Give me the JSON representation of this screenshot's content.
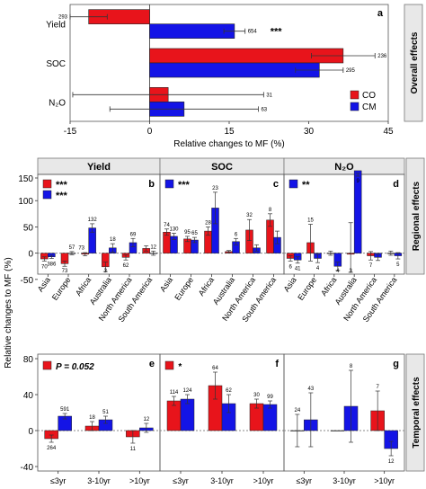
{
  "colors": {
    "co": "#e8141b",
    "cm": "#1414e6",
    "strip": "#e8e8e8",
    "err": "#333333"
  },
  "ylabel_shared": "Relative changes to MF (%)",
  "chart_data": [
    {
      "id": "a",
      "type": "bar",
      "orientation": "horizontal",
      "panel_letter": "a",
      "side_label": "Overall effects",
      "xlabel": "Relative changes to MF (%)",
      "xlim": [
        -15,
        45
      ],
      "xticks": [
        "-15",
        "0",
        "15",
        "30",
        "45"
      ],
      "legend": [
        {
          "name": "CO",
          "color": "#e8141b"
        },
        {
          "name": "CM",
          "color": "#1414e6"
        }
      ],
      "legend_position": "bottom-right",
      "categories": [
        "Yield",
        "SOC",
        "N₂O"
      ],
      "series": [
        {
          "name": "CO",
          "values": [
            -11.5,
            36.5,
            3.5
          ],
          "err": [
            3.5,
            6,
            18
          ],
          "n": [
            "293",
            "236",
            "31"
          ]
        },
        {
          "name": "CM",
          "values": [
            16,
            32,
            6.5
          ],
          "err": [
            2,
            4.5,
            14
          ],
          "n": [
            "654",
            "295",
            "63"
          ]
        }
      ],
      "significance": [
        {
          "category": 0,
          "text": "***"
        }
      ]
    },
    {
      "id": "b",
      "type": "bar",
      "panel_letter": "b",
      "strip_title": "Yield",
      "ylim": [
        -40,
        150
      ],
      "yticks": [
        "-50",
        "0",
        "50",
        "100",
        "150"
      ],
      "categories": [
        "Asia",
        "Europe",
        "Africa",
        "Australia",
        "North America",
        "South America"
      ],
      "series": [
        {
          "name": "CO",
          "values": [
            -11,
            -20,
            -2,
            -26,
            -8,
            9
          ],
          "err": [
            4,
            5,
            3,
            9,
            5,
            5
          ],
          "n": [
            "70",
            "73",
            "",
            "3",
            "62",
            ""
          ]
        },
        {
          "name": "CM",
          "values": [
            -7,
            0,
            48,
            10,
            20,
            0
          ],
          "err": [
            3,
            3,
            8,
            8,
            8,
            4
          ],
          "n": [
            "386",
            "57",
            "132",
            "18",
            "69",
            "12"
          ]
        }
      ],
      "n_extra": [
        {
          "category": 2,
          "text": "73"
        }
      ],
      "legend_sig": [
        {
          "series": 0,
          "text": "***"
        },
        {
          "series": 1,
          "text": "***"
        }
      ],
      "side_label": "Regional effects"
    },
    {
      "id": "c",
      "type": "bar",
      "panel_letter": "c",
      "strip_title": "SOC",
      "ylim": [
        -40,
        150
      ],
      "categories": [
        "Asia",
        "Europe",
        "Africa",
        "Australia",
        "North America",
        "South America"
      ],
      "series": [
        {
          "name": "CO",
          "values": [
            40,
            27,
            42,
            3,
            44,
            63
          ],
          "err": [
            6,
            5,
            8,
            2,
            20,
            12
          ],
          "n": [
            "74",
            "95",
            "28",
            "",
            "32",
            "8"
          ]
        },
        {
          "name": "CM",
          "values": [
            32,
            25,
            86,
            22,
            10,
            30
          ],
          "err": [
            6,
            5,
            30,
            6,
            6,
            12
          ],
          "n": [
            "130",
            "65",
            "23",
            "6",
            "",
            ""
          ]
        }
      ],
      "legend_sig": [
        {
          "series": 1,
          "text": "***"
        }
      ]
    },
    {
      "id": "d",
      "type": "bar",
      "panel_letter": "d",
      "strip_title": "N₂O",
      "ylim": [
        -40,
        150
      ],
      "categories": [
        "Asia",
        "Europe",
        "Africa",
        "Australia",
        "North America",
        "South America"
      ],
      "series": [
        {
          "name": "CO",
          "values": [
            -10,
            20,
            0,
            -2,
            -5,
            0
          ],
          "err": [
            5,
            35,
            4,
            60,
            8,
            4
          ],
          "n": [
            "6",
            "15",
            "",
            "3",
            "7",
            ""
          ]
        },
        {
          "name": "CM",
          "values": [
            -13,
            -10,
            -25,
            157,
            -8,
            -5
          ],
          "err": [
            6,
            8,
            8,
            5,
            6,
            6
          ],
          "n": [
            "41",
            "4",
            "4",
            "9",
            "",
            "5"
          ]
        }
      ],
      "legend_sig": [
        {
          "series": 1,
          "text": "**"
        }
      ]
    },
    {
      "id": "e",
      "type": "bar",
      "panel_letter": "e",
      "ylim": [
        -45,
        85
      ],
      "yticks": [
        "-40",
        "0",
        "40",
        "80"
      ],
      "categories": [
        "≤3yr",
        "3-10yr",
        ">10yr"
      ],
      "series": [
        {
          "name": "CO",
          "values": [
            -9,
            5,
            -7
          ],
          "err": [
            4,
            5,
            7
          ],
          "n": [
            "264",
            "18",
            "11"
          ]
        },
        {
          "name": "CM",
          "values": [
            16,
            12,
            3
          ],
          "err": [
            3,
            4,
            5
          ],
          "n": [
            "591",
            "51",
            "12"
          ]
        }
      ],
      "legend_text": "P = 0.052",
      "side_label": "Temporal effects"
    },
    {
      "id": "f",
      "type": "bar",
      "panel_letter": "f",
      "ylim": [
        -45,
        85
      ],
      "categories": [
        "≤3yr",
        "3-10yr",
        ">10yr"
      ],
      "series": [
        {
          "name": "CO",
          "values": [
            33,
            50,
            30
          ],
          "err": [
            5,
            15,
            5
          ],
          "n": [
            "114",
            "64",
            "30"
          ]
        },
        {
          "name": "CM",
          "values": [
            35,
            30,
            29
          ],
          "err": [
            5,
            10,
            4
          ],
          "n": [
            "124",
            "62",
            "99"
          ]
        }
      ],
      "legend_text": "*"
    },
    {
      "id": "g",
      "type": "bar",
      "panel_letter": "g",
      "ylim": [
        -45,
        85
      ],
      "categories": [
        "≤3yr",
        "3-10yr",
        ">10yr"
      ],
      "series": [
        {
          "name": "CO",
          "values": [
            0,
            0,
            22
          ],
          "err": [
            18,
            0,
            22
          ],
          "n": [
            "24",
            "",
            "7"
          ]
        },
        {
          "name": "CM",
          "values": [
            12,
            27,
            -20
          ],
          "err": [
            30,
            40,
            8
          ],
          "n": [
            "43",
            "8",
            "12"
          ]
        }
      ]
    }
  ]
}
